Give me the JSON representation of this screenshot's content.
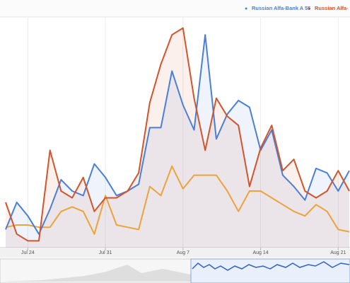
{
  "chart_data": {
    "type": "line",
    "categories": [
      null,
      null,
      "Jul 24",
      null,
      null,
      null,
      null,
      null,
      null,
      "Jul 31",
      null,
      null,
      null,
      null,
      null,
      null,
      "Aug 7",
      null,
      null,
      null,
      null,
      null,
      null,
      "Aug 14",
      null,
      null,
      null,
      null,
      null,
      null,
      "Aug 21",
      null
    ],
    "series": [
      {
        "name": "Russian Alfa-Bank A 55",
        "color": "#4a7fd8",
        "values": [
          8,
          20,
          14,
          6,
          17,
          30,
          25,
          23,
          37,
          31,
          23,
          25,
          28,
          53,
          53,
          78,
          63,
          52,
          94,
          48,
          59,
          65,
          62,
          43,
          52,
          32,
          27,
          21,
          35,
          33,
          25,
          34
        ]
      },
      {
        "name": "Russian Alfa-",
        "color": "#d2542a",
        "values": [
          20,
          6,
          3,
          3,
          43,
          25,
          22,
          31,
          16,
          22,
          22,
          25,
          33,
          64,
          81,
          94,
          97,
          66,
          43,
          66,
          58,
          54,
          27,
          44,
          54,
          34,
          39,
          25,
          22,
          25,
          34,
          25
        ]
      },
      {
        "color": "#eba33c",
        "values": [
          9,
          10,
          10,
          9,
          9,
          16,
          18,
          16,
          6,
          23,
          10,
          9,
          8,
          27,
          23,
          36,
          26,
          32,
          32,
          32,
          25,
          16,
          25,
          25,
          22,
          19,
          16,
          14,
          19,
          16,
          8,
          7
        ]
      }
    ],
    "ylim": [
      0,
      100
    ],
    "grid": true
  }
}
